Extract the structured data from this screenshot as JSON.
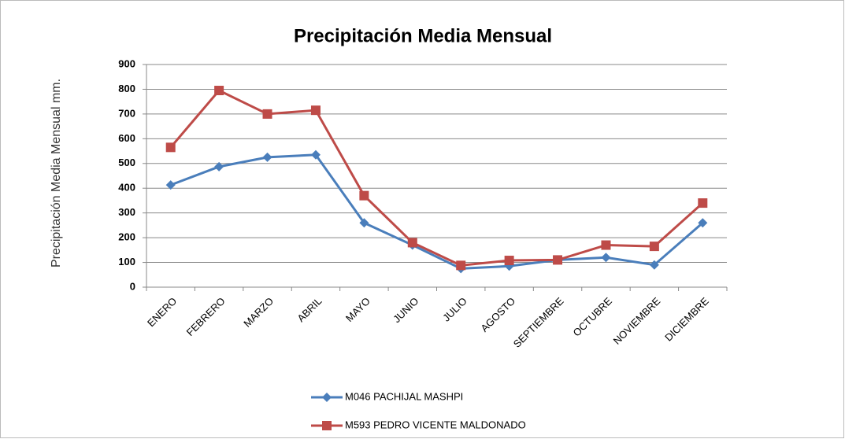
{
  "chart_data": {
    "type": "line",
    "title": "Precipitación Media Mensual",
    "y_label": "Precipitación Media Mensual mm.",
    "categories": [
      "ENERO",
      "FEBRERO",
      "MARZO",
      "ABRIL",
      "MAYO",
      "JUNIO",
      "JULIO",
      "AGOSTO",
      "SEPTIEMBRE",
      "OCTUBRE",
      "NOVIEMBRE",
      "DICIEMBRE"
    ],
    "series": [
      {
        "name": "M046 PACHIJAL MASHPI",
        "color": "#4a7ebb",
        "marker": "diamond",
        "values": [
          413,
          487,
          525,
          535,
          260,
          170,
          75,
          85,
          110,
          120,
          90,
          260
        ]
      },
      {
        "name": "M593 PEDRO VICENTE MALDONADO",
        "color": "#be4b48",
        "marker": "square",
        "values": [
          565,
          795,
          700,
          715,
          370,
          180,
          88,
          108,
          110,
          170,
          165,
          340
        ]
      }
    ],
    "ylim": [
      0,
      900
    ],
    "yticks": [
      0,
      100,
      200,
      300,
      400,
      500,
      600,
      700,
      800,
      900
    ],
    "grid": true
  }
}
